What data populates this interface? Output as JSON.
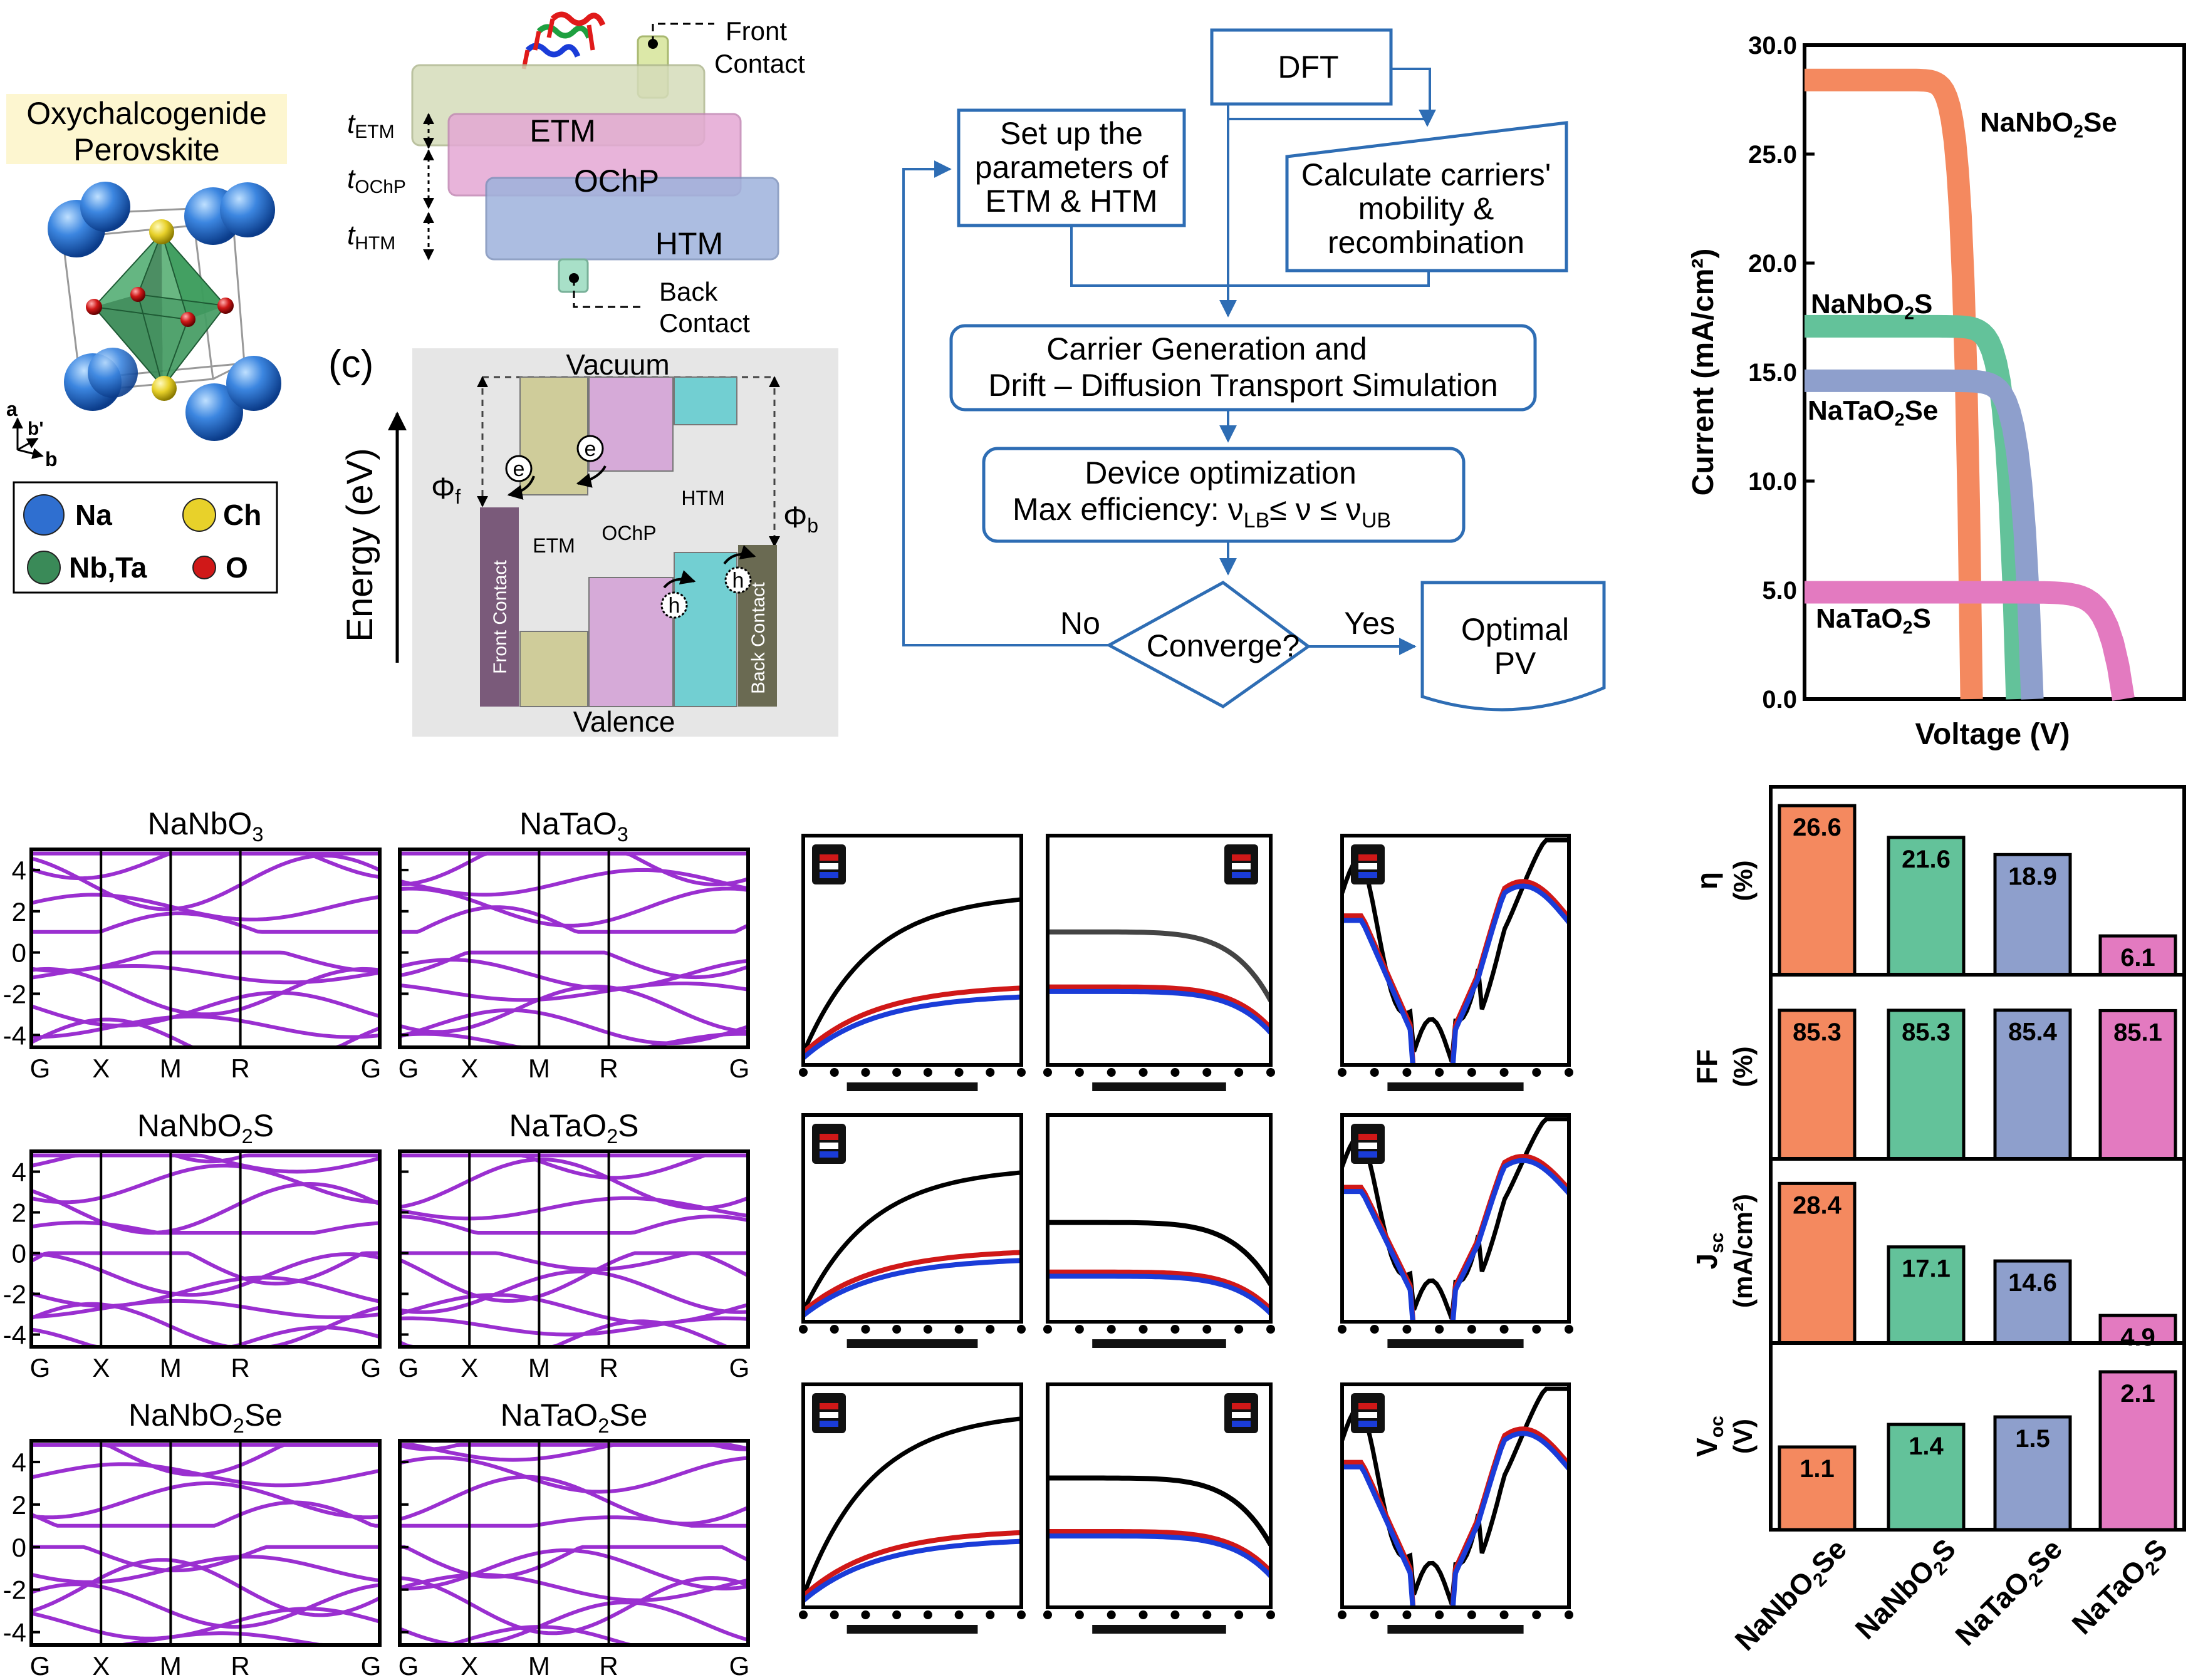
{
  "perovskite": {
    "title_line1": "Oxychalcogenide",
    "title_line2": "Perovskite",
    "axis_a": "a",
    "axis_b_prime": "b'",
    "axis_b": "b",
    "legend": {
      "na": "Na",
      "ch": "Ch",
      "nbta": "Nb,Ta",
      "o": "O"
    },
    "colors": {
      "na": "#2f6fd0",
      "ch": "#e8d12a",
      "nbta": "#3a8a58",
      "o": "#d01818"
    }
  },
  "device": {
    "front_contact_1": "Front",
    "front_contact_2": "Contact",
    "back_contact_1": "Back",
    "back_contact_2": "Contact",
    "etm": "ETM",
    "ochp": "OChP",
    "htm": "HTM",
    "t_etm": "t",
    "t_etm_sub": "ETM",
    "t_ochp": "t",
    "t_ochp_sub": "OChP",
    "t_htm": "t",
    "t_htm_sub": "HTM"
  },
  "band_diagram": {
    "panel_label": "(c)",
    "vacuum": "Vacuum",
    "valence": "Valence",
    "y_label": "Energy (eV)",
    "phi_f": "Φ",
    "phi_f_sub": "f",
    "phi_b": "Φ",
    "phi_b_sub": "b",
    "etm": "ETM",
    "ochp": "OChP",
    "htm": "HTM",
    "front_contact": "Front Contact",
    "back_contact": "Back Contact",
    "electron": "e",
    "hole": "h"
  },
  "flowchart": {
    "dft": "DFT",
    "setup_1": "Set up the",
    "setup_2": "parameters of",
    "setup_3": "ETM & HTM",
    "calc_1": "Calculate carriers'",
    "calc_2": "mobility &",
    "calc_3": "recombination",
    "sim_1": "Carrier Generation and",
    "sim_2": "Drift – Diffusion Transport Simulation",
    "opt_1": "Device optimization",
    "opt_2": "Max efficiency:  ν",
    "opt_lb": "LB",
    "opt_mid": "≤ ν ≤ ν",
    "opt_ub": "UB",
    "converge": "Converge?",
    "no": "No",
    "yes": "Yes",
    "optimal_1": "Optimal",
    "optimal_2": "PV",
    "color": "#2e6db4"
  },
  "chart_data": [
    {
      "type": "line",
      "xlabel": "Voltage (V)",
      "ylabel": "Current (mA/cm²)",
      "ylim": [
        0,
        30
      ],
      "yticks": [
        "0.0",
        "5.0",
        "10.0",
        "15.0",
        "20.0",
        "25.0",
        "30.0"
      ],
      "xlim": [
        0,
        2.5
      ],
      "series": [
        {
          "name": "NaNbO₂Se",
          "label_main": "NaNbO",
          "label_sub": "2",
          "label_end": "Se",
          "color": "#f4895f",
          "jsc": 28.4,
          "voc": 1.1
        },
        {
          "name": "NaNbO₂S",
          "label_main": "NaNbO",
          "label_sub": "2",
          "label_end": "S",
          "color": "#63c29a",
          "jsc": 17.1,
          "voc": 1.4
        },
        {
          "name": "NaTaO₂Se",
          "label_main": "NaTaO",
          "label_sub": "2",
          "label_end": "Se",
          "color": "#8e9fcc",
          "jsc": 14.6,
          "voc": 1.5
        },
        {
          "name": "NaTaO₂S",
          "label_main": "NaTaO",
          "label_sub": "2",
          "label_end": "S",
          "color": "#e37ac0",
          "jsc": 4.9,
          "voc": 2.1
        }
      ]
    },
    {
      "type": "bar",
      "categories_main": [
        "NaNbO",
        "NaNbO",
        "NaTaO",
        "NaTaO"
      ],
      "categories_sub": [
        "2",
        "2",
        "2",
        "2"
      ],
      "categories_end": [
        "Se",
        "S",
        "Se",
        "S"
      ],
      "colors": [
        "#f4895f",
        "#63c29a",
        "#8e9fcc",
        "#e37ac0"
      ],
      "panels": [
        {
          "ylabel_1": "η",
          "ylabel_2": "(%)",
          "values": [
            26.6,
            21.6,
            18.9,
            6.1
          ],
          "labels": [
            "26.6",
            "21.6",
            "18.9",
            "6.1"
          ],
          "ymax": 28
        },
        {
          "ylabel_1": "FF",
          "ylabel_2": "(%)",
          "values": [
            85.3,
            85.3,
            85.4,
            85.1
          ],
          "labels": [
            "85.3",
            "85.3",
            "85.4",
            "85.1"
          ],
          "ymax": 100
        },
        {
          "ylabel_1": "J",
          "ylabel_1_sub": "sc",
          "ylabel_2": "(mA/cm²)",
          "values": [
            28.4,
            17.1,
            14.6,
            4.9
          ],
          "labels": [
            "28.4",
            "17.1",
            "14.6",
            "4.9"
          ],
          "ymax": 31
        },
        {
          "ylabel_1": "V",
          "ylabel_1_sub": "oc",
          "ylabel_2": "(V)",
          "values": [
            1.1,
            1.4,
            1.5,
            2.1
          ],
          "labels": [
            "1.1",
            "1.4",
            "1.5",
            "2.1"
          ],
          "ymax": 2.35
        }
      ]
    }
  ],
  "band_structures": {
    "k_labels": [
      "G",
      "X",
      "M",
      "R",
      "G"
    ],
    "y_ticks": [
      "4",
      "2",
      "0",
      "-2",
      "-4"
    ],
    "titles": [
      {
        "main": "NaNbO",
        "sub": "3",
        "end": ""
      },
      {
        "main": "NaTaO",
        "sub": "3",
        "end": ""
      },
      {
        "main": "NaNbO",
        "sub": "2",
        "end": "S"
      },
      {
        "main": "NaTaO",
        "sub": "2",
        "end": "S"
      },
      {
        "main": "NaNbO",
        "sub": "2",
        "end": "Se"
      },
      {
        "main": "NaTaO",
        "sub": "2",
        "end": "Se"
      }
    ],
    "color": "#9a2fd0"
  }
}
